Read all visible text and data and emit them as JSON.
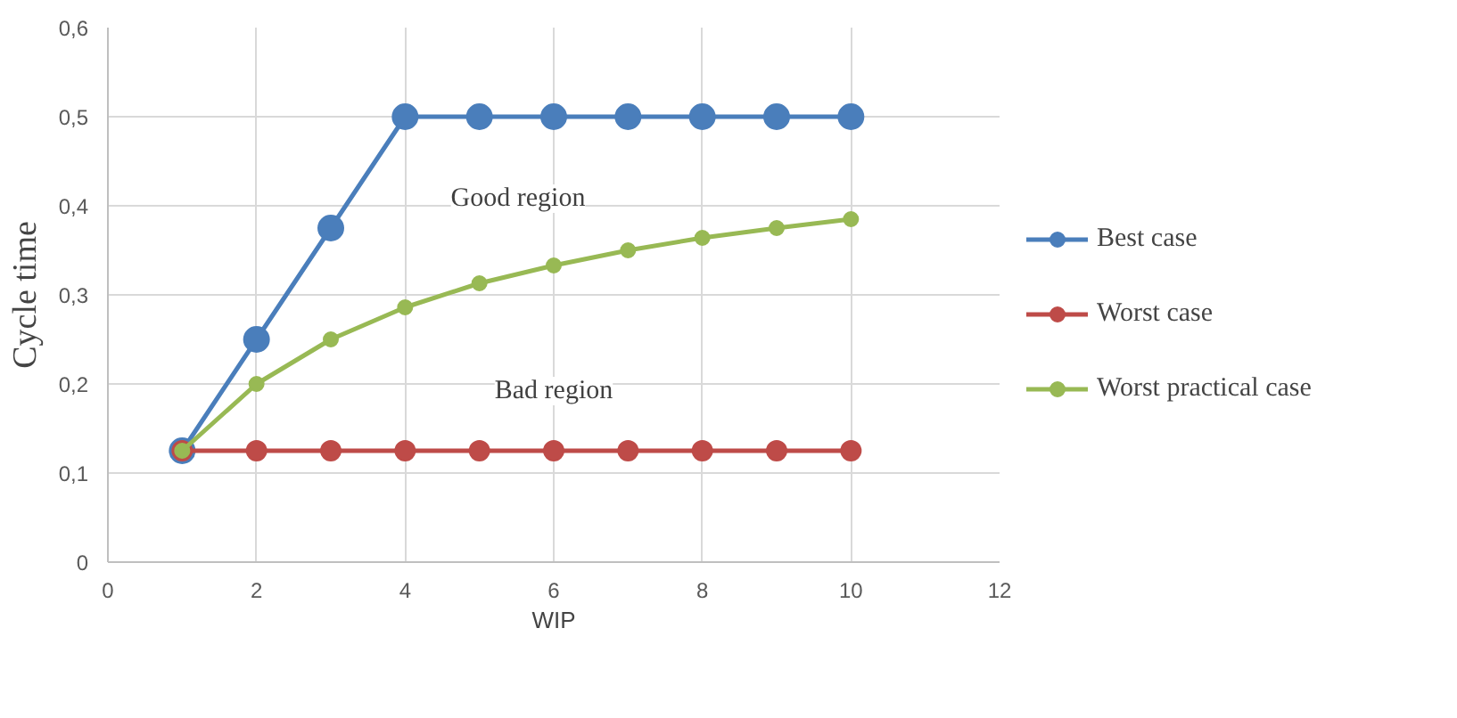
{
  "chart_data": {
    "type": "line",
    "xlabel": "WIP",
    "ylabel": "Cycle time",
    "x": [
      1,
      2,
      3,
      4,
      5,
      6,
      7,
      8,
      9,
      10
    ],
    "series": [
      {
        "name": "Best case",
        "color": "#4a7ebb",
        "values": [
          0.125,
          0.25,
          0.375,
          0.5,
          0.5,
          0.5,
          0.5,
          0.5,
          0.5,
          0.5
        ]
      },
      {
        "name": "Worst case",
        "color": "#be4b48",
        "values": [
          0.125,
          0.125,
          0.125,
          0.125,
          0.125,
          0.125,
          0.125,
          0.125,
          0.125,
          0.125
        ]
      },
      {
        "name": "Worst practical case",
        "color": "#98b954",
        "values": [
          0.125,
          0.2,
          0.25,
          0.286,
          0.313,
          0.333,
          0.35,
          0.364,
          0.375,
          0.385
        ]
      }
    ],
    "xlim": [
      0,
      12
    ],
    "xticks": [
      0,
      2,
      4,
      6,
      8,
      10,
      12
    ],
    "ylim": [
      0,
      0.6
    ],
    "yticks": [
      0,
      {
        "value": 0.1,
        "label": "0,1"
      },
      {
        "value": 0.2,
        "label": "0,2"
      },
      {
        "value": 0.3,
        "label": "0,3"
      },
      {
        "value": 0.4,
        "label": "0,4"
      },
      {
        "value": 0.5,
        "label": "0,5"
      },
      {
        "value": 0.6,
        "label": "0,6"
      }
    ],
    "annotations": [
      "Good region",
      "Bad region"
    ],
    "grid": true,
    "legend": "right",
    "marker": "circle",
    "line_style": "solid"
  }
}
